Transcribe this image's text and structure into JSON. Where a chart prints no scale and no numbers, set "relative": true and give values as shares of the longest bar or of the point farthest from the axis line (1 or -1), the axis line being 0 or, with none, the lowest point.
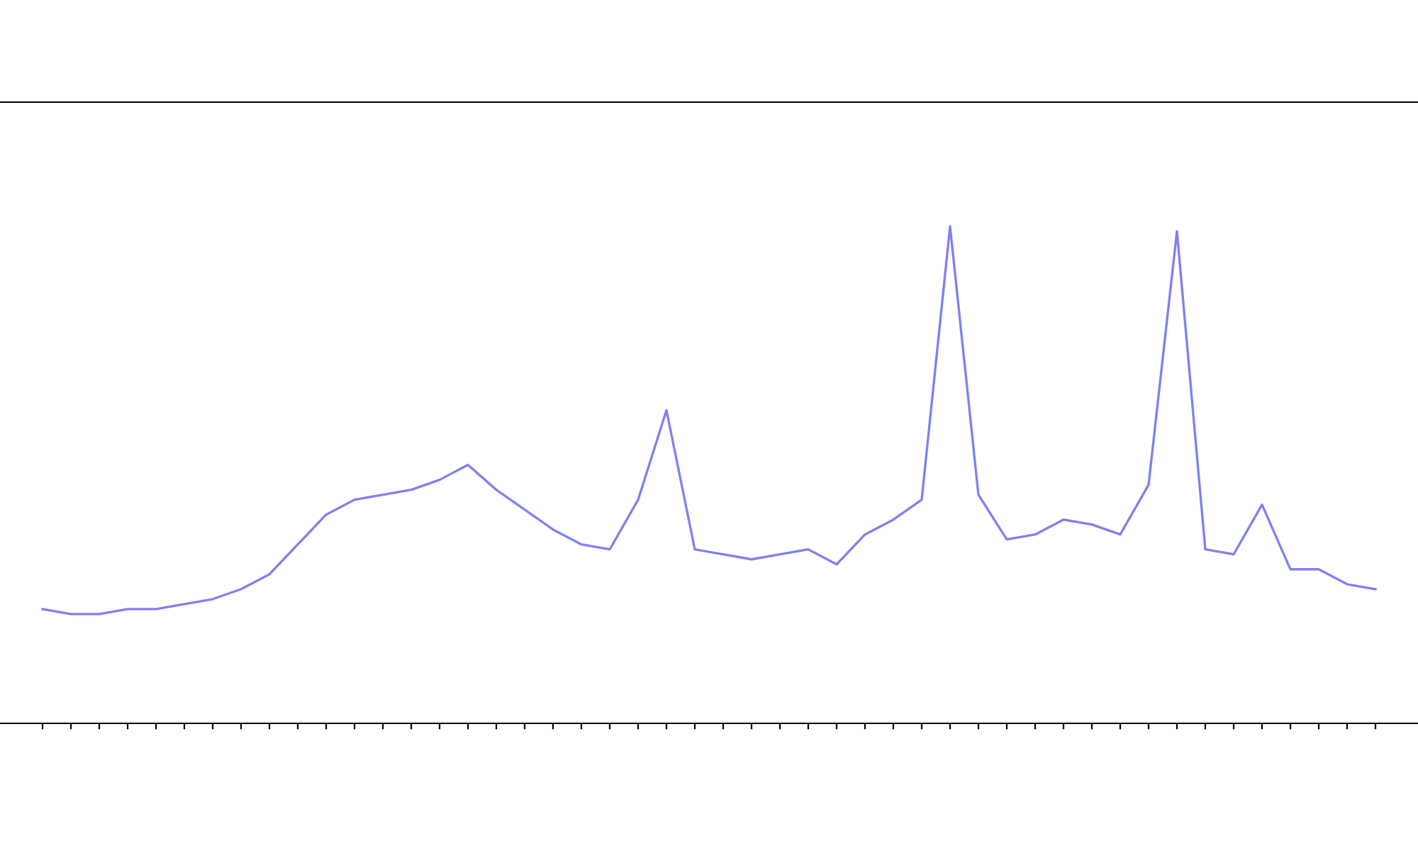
{
  "chart_data": {
    "type": "line",
    "relative": true,
    "categories": [
      null,
      null,
      null,
      null,
      null,
      null,
      null,
      null,
      null,
      null,
      null,
      null,
      null,
      null,
      null,
      null,
      null,
      null,
      null,
      null,
      null,
      null,
      null,
      null,
      null,
      null,
      null,
      null,
      null,
      null,
      null,
      null,
      null,
      null,
      null,
      null,
      null,
      null,
      null,
      null,
      null,
      null,
      null,
      null,
      null,
      null,
      null,
      null
    ],
    "series": [
      {
        "color": "#8080f0",
        "values": [
          0.23,
          0.22,
          0.22,
          0.23,
          0.23,
          0.24,
          0.25,
          0.27,
          0.3,
          0.36,
          0.42,
          0.45,
          0.46,
          0.47,
          0.49,
          0.52,
          0.47,
          0.43,
          0.39,
          0.36,
          0.35,
          0.45,
          0.63,
          0.35,
          0.34,
          0.33,
          0.34,
          0.35,
          0.32,
          0.38,
          0.41,
          0.45,
          1.0,
          0.46,
          0.37,
          0.38,
          0.41,
          0.4,
          0.38,
          0.48,
          0.99,
          0.35,
          0.34,
          0.44,
          0.31,
          0.31,
          0.28,
          0.27
        ]
      }
    ],
    "grid": false,
    "legend": false
  }
}
